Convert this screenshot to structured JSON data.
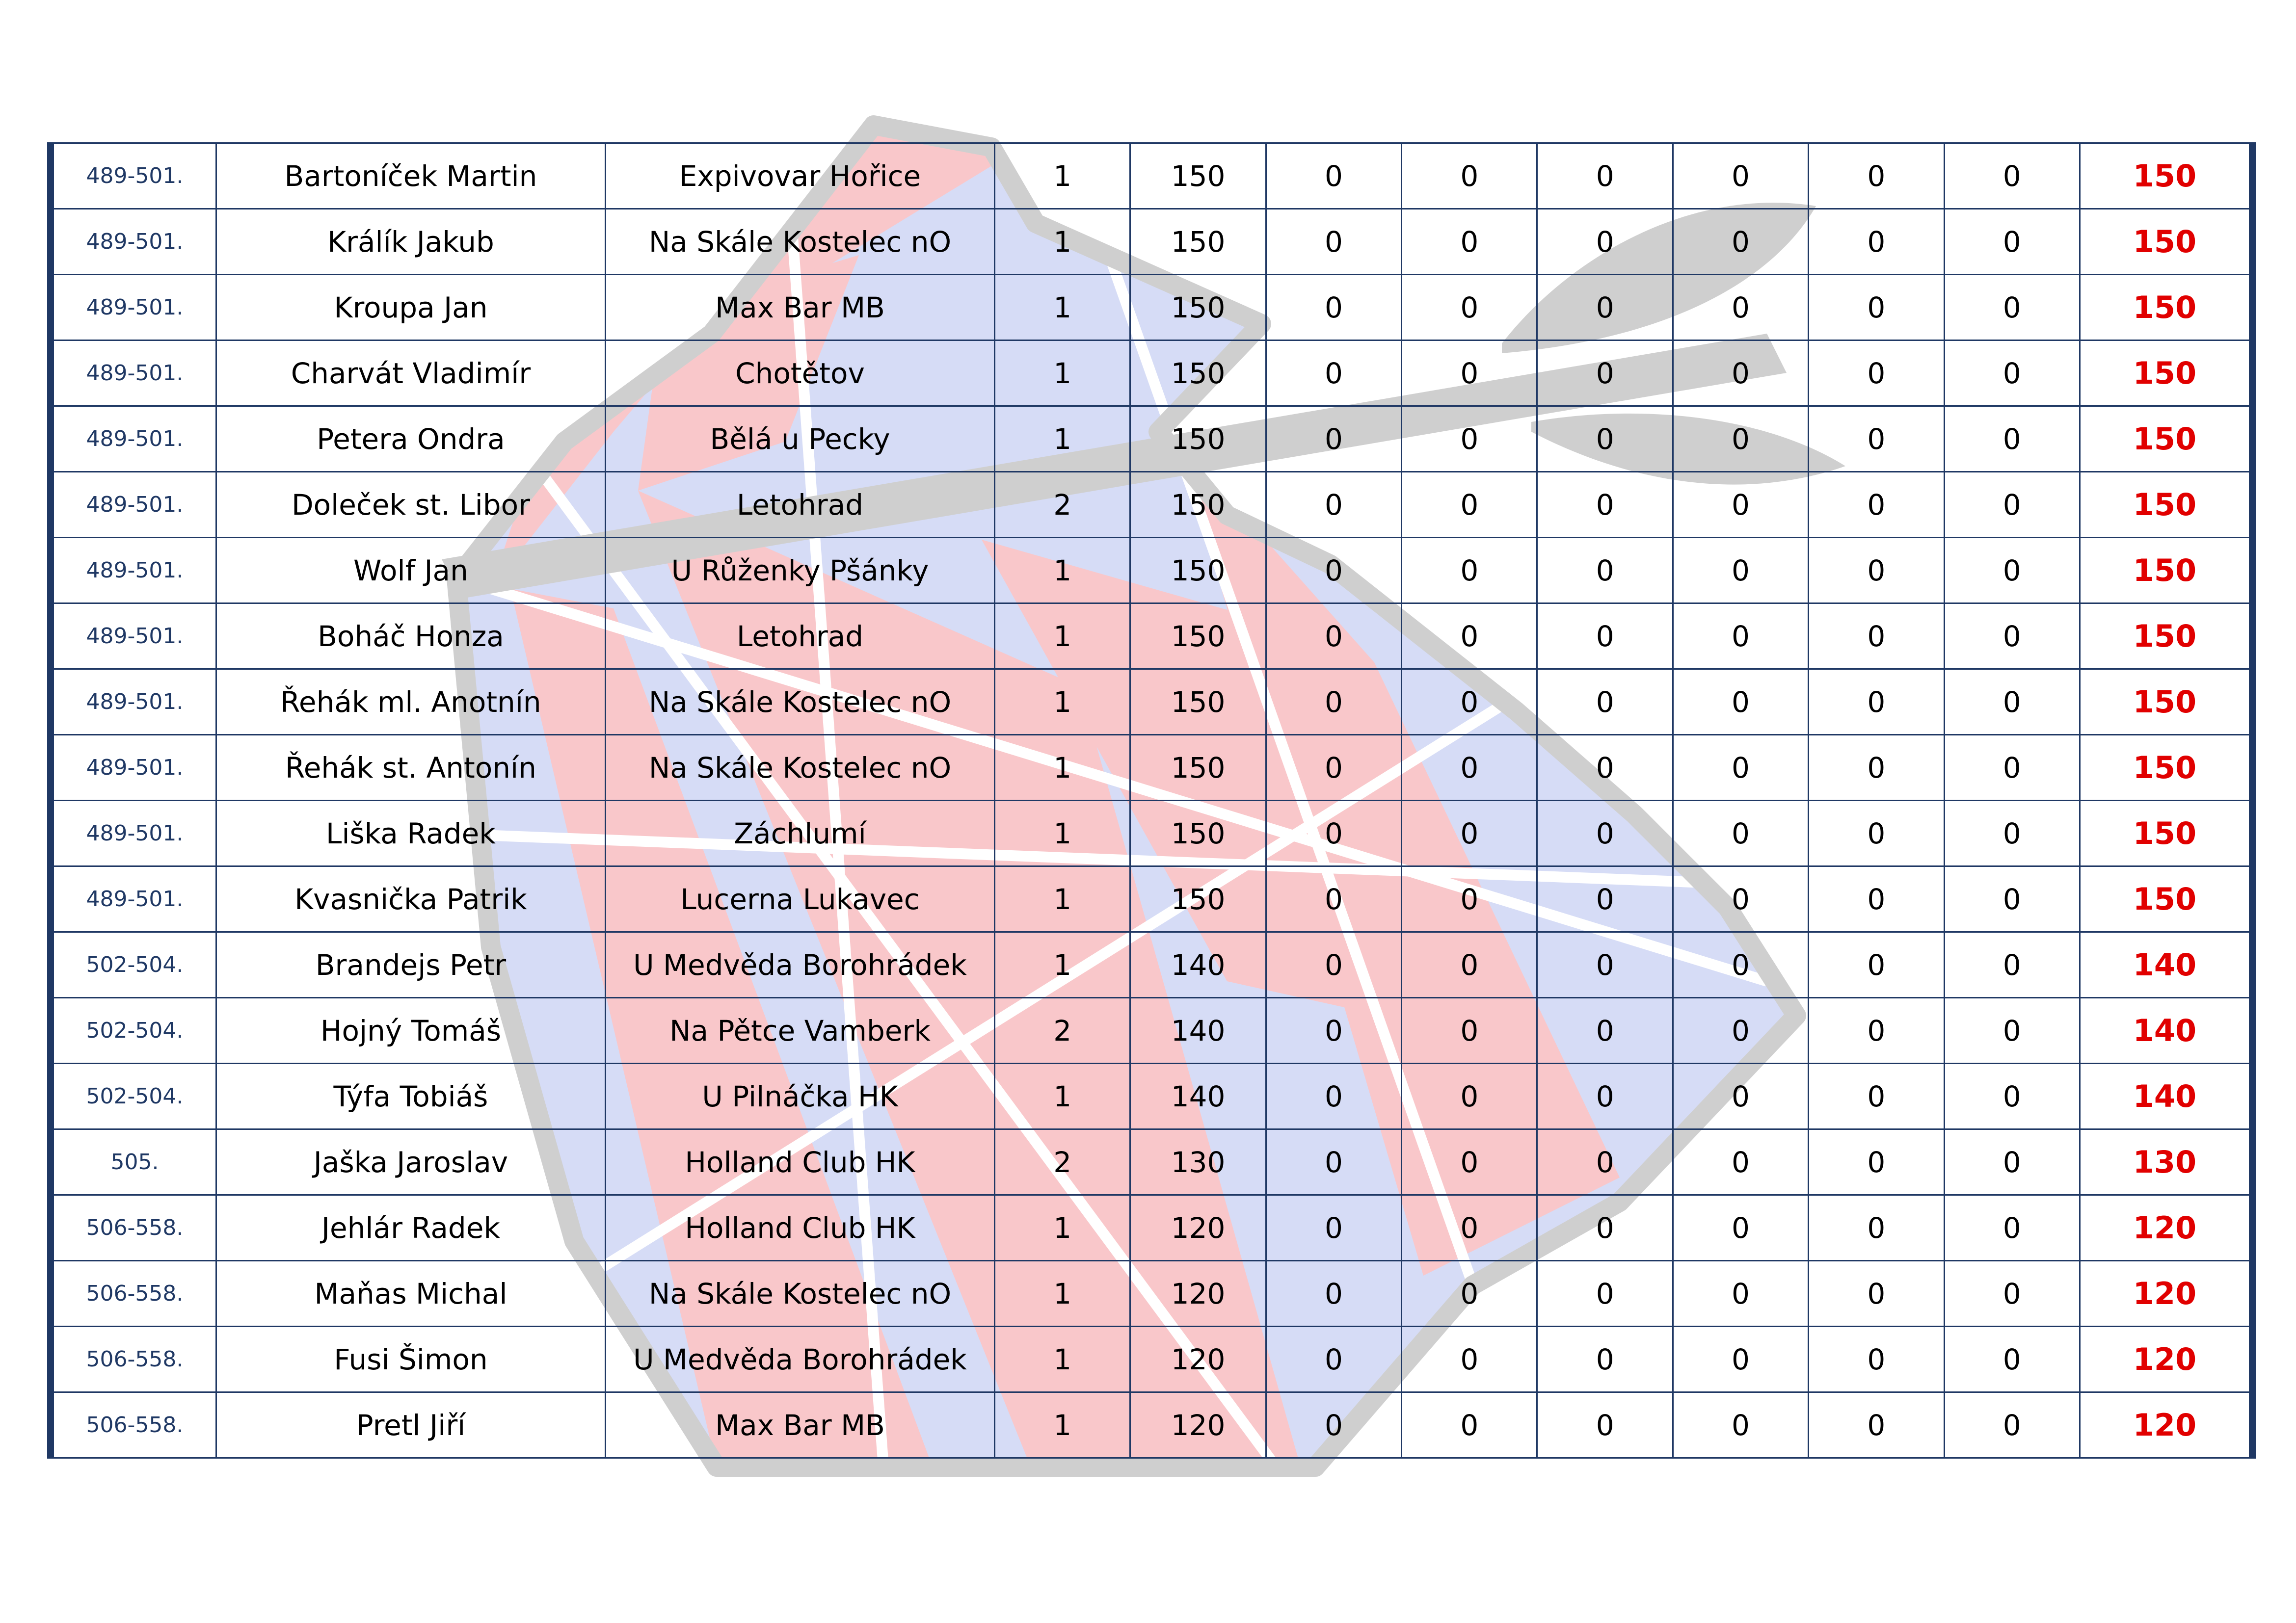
{
  "watermark": {
    "icon": "dartboard-logo",
    "colors": {
      "red": "#f9c7ca",
      "blue": "#d6dcf6",
      "outline": "#cfcfcf"
    }
  },
  "table": {
    "rows": [
      {
        "rank": "489-501.",
        "name": "Bartoníček Martin",
        "club": "Expivovar Hořice",
        "events": "1",
        "points": "150",
        "r1": "0",
        "r2": "0",
        "r3": "0",
        "r4": "0",
        "r5": "0",
        "r6": "0",
        "total": "150"
      },
      {
        "rank": "489-501.",
        "name": "Králík Jakub",
        "club": "Na Skále Kostelec nO",
        "events": "1",
        "points": "150",
        "r1": "0",
        "r2": "0",
        "r3": "0",
        "r4": "0",
        "r5": "0",
        "r6": "0",
        "total": "150"
      },
      {
        "rank": "489-501.",
        "name": "Kroupa Jan",
        "club": "Max Bar MB",
        "events": "1",
        "points": "150",
        "r1": "0",
        "r2": "0",
        "r3": "0",
        "r4": "0",
        "r5": "0",
        "r6": "0",
        "total": "150"
      },
      {
        "rank": "489-501.",
        "name": "Charvát Vladimír",
        "club": "Chotětov",
        "events": "1",
        "points": "150",
        "r1": "0",
        "r2": "0",
        "r3": "0",
        "r4": "0",
        "r5": "0",
        "r6": "0",
        "total": "150"
      },
      {
        "rank": "489-501.",
        "name": "Petera Ondra",
        "club": "Bělá u Pecky",
        "events": "1",
        "points": "150",
        "r1": "0",
        "r2": "0",
        "r3": "0",
        "r4": "0",
        "r5": "0",
        "r6": "0",
        "total": "150"
      },
      {
        "rank": "489-501.",
        "name": "Doleček st. Libor",
        "club": "Letohrad",
        "events": "2",
        "points": "150",
        "r1": "0",
        "r2": "0",
        "r3": "0",
        "r4": "0",
        "r5": "0",
        "r6": "0",
        "total": "150"
      },
      {
        "rank": "489-501.",
        "name": "Wolf Jan",
        "club": "U Růženky Pšánky",
        "events": "1",
        "points": "150",
        "r1": "0",
        "r2": "0",
        "r3": "0",
        "r4": "0",
        "r5": "0",
        "r6": "0",
        "total": "150"
      },
      {
        "rank": "489-501.",
        "name": "Boháč Honza",
        "club": "Letohrad",
        "events": "1",
        "points": "150",
        "r1": "0",
        "r2": "0",
        "r3": "0",
        "r4": "0",
        "r5": "0",
        "r6": "0",
        "total": "150"
      },
      {
        "rank": "489-501.",
        "name": "Řehák ml. Anotnín",
        "club": "Na Skále Kostelec nO",
        "events": "1",
        "points": "150",
        "r1": "0",
        "r2": "0",
        "r3": "0",
        "r4": "0",
        "r5": "0",
        "r6": "0",
        "total": "150"
      },
      {
        "rank": "489-501.",
        "name": "Řehák st. Antonín",
        "club": "Na Skále Kostelec nO",
        "events": "1",
        "points": "150",
        "r1": "0",
        "r2": "0",
        "r3": "0",
        "r4": "0",
        "r5": "0",
        "r6": "0",
        "total": "150"
      },
      {
        "rank": "489-501.",
        "name": "Liška Radek",
        "club": "Záchlumí",
        "events": "1",
        "points": "150",
        "r1": "0",
        "r2": "0",
        "r3": "0",
        "r4": "0",
        "r5": "0",
        "r6": "0",
        "total": "150"
      },
      {
        "rank": "489-501.",
        "name": "Kvasnička Patrik",
        "club": "Lucerna Lukavec",
        "events": "1",
        "points": "150",
        "r1": "0",
        "r2": "0",
        "r3": "0",
        "r4": "0",
        "r5": "0",
        "r6": "0",
        "total": "150"
      },
      {
        "rank": "502-504.",
        "name": "Brandejs Petr",
        "club": "U Medvěda Borohrádek",
        "events": "1",
        "points": "140",
        "r1": "0",
        "r2": "0",
        "r3": "0",
        "r4": "0",
        "r5": "0",
        "r6": "0",
        "total": "140"
      },
      {
        "rank": "502-504.",
        "name": "Hojný Tomáš",
        "club": "Na Pětce Vamberk",
        "events": "2",
        "points": "140",
        "r1": "0",
        "r2": "0",
        "r3": "0",
        "r4": "0",
        "r5": "0",
        "r6": "0",
        "total": "140"
      },
      {
        "rank": "502-504.",
        "name": "Týfa Tobiáš",
        "club": "U Pilnáčka HK",
        "events": "1",
        "points": "140",
        "r1": "0",
        "r2": "0",
        "r3": "0",
        "r4": "0",
        "r5": "0",
        "r6": "0",
        "total": "140"
      },
      {
        "rank": "505.",
        "name": "Jaška Jaroslav",
        "club": "Holland Club HK",
        "events": "2",
        "points": "130",
        "r1": "0",
        "r2": "0",
        "r3": "0",
        "r4": "0",
        "r5": "0",
        "r6": "0",
        "total": "130"
      },
      {
        "rank": "506-558.",
        "name": "Jehlár Radek",
        "club": "Holland Club HK",
        "events": "1",
        "points": "120",
        "r1": "0",
        "r2": "0",
        "r3": "0",
        "r4": "0",
        "r5": "0",
        "r6": "0",
        "total": "120"
      },
      {
        "rank": "506-558.",
        "name": "Maňas Michal",
        "club": "Na Skále Kostelec nO",
        "events": "1",
        "points": "120",
        "r1": "0",
        "r2": "0",
        "r3": "0",
        "r4": "0",
        "r5": "0",
        "r6": "0",
        "total": "120"
      },
      {
        "rank": "506-558.",
        "name": "Fusi Šimon",
        "club": "U Medvěda Borohrádek",
        "events": "1",
        "points": "120",
        "r1": "0",
        "r2": "0",
        "r3": "0",
        "r4": "0",
        "r5": "0",
        "r6": "0",
        "total": "120"
      },
      {
        "rank": "506-558.",
        "name": "Pretl Jiří",
        "club": "Max Bar MB",
        "events": "1",
        "points": "120",
        "r1": "0",
        "r2": "0",
        "r3": "0",
        "r4": "0",
        "r5": "0",
        "r6": "0",
        "total": "120"
      }
    ]
  }
}
